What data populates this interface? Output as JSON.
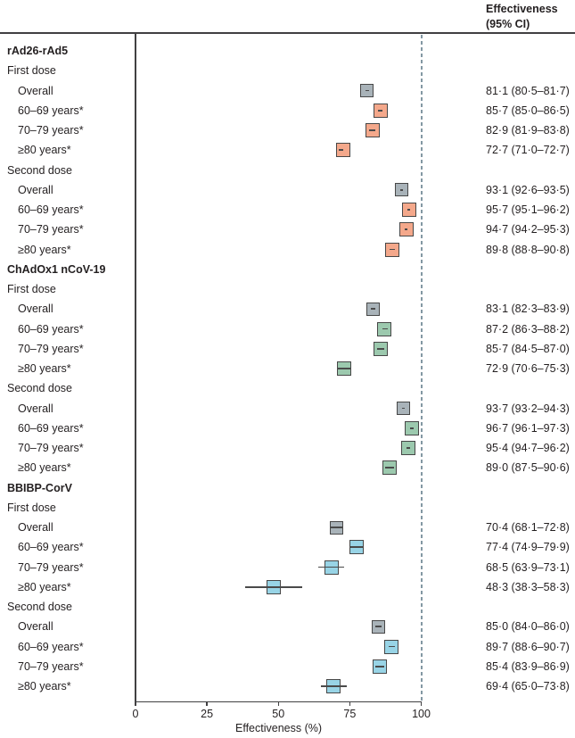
{
  "header": {
    "line1": "Effectiveness",
    "line2": "(95% CI)"
  },
  "chart_data": {
    "type": "forest",
    "xlabel": "Effectiveness (%)",
    "x_ticks": [
      0,
      25,
      50,
      75,
      100
    ],
    "x_range": [
      0,
      100
    ],
    "reference_line_x": 100,
    "legend_position": "none",
    "grid": false,
    "colors": {
      "overall": "#a9b3b9",
      "salmon": "#f4a88b",
      "green": "#9cc9ae",
      "blue": "#98d4e6",
      "box_border": "#474747",
      "whisker": "#4a4a4a",
      "reference_dash": "#8398a3",
      "axis": "#414042"
    },
    "rows": [
      {
        "kind": "group",
        "label": "rAd26-rAd5"
      },
      {
        "kind": "dose",
        "label": "First dose"
      },
      {
        "kind": "item",
        "label": "Overall",
        "est": 81.1,
        "lo": 80.5,
        "hi": 81.7,
        "value": "81·1 (80·5–81·7)",
        "color": "overall"
      },
      {
        "kind": "item",
        "label": "60–69 years*",
        "est": 85.7,
        "lo": 85.0,
        "hi": 86.5,
        "value": "85·7 (85·0–86·5)",
        "color": "salmon"
      },
      {
        "kind": "item",
        "label": "70–79 years*",
        "est": 82.9,
        "lo": 81.9,
        "hi": 83.8,
        "value": "82·9 (81·9–83·8)",
        "color": "salmon"
      },
      {
        "kind": "item",
        "label": "≥80 years*",
        "est": 72.7,
        "lo": 71.0,
        "hi": 72.7,
        "value": "72·7 (71·0–72·7)",
        "color": "salmon"
      },
      {
        "kind": "dose",
        "label": "Second dose"
      },
      {
        "kind": "item",
        "label": "Overall",
        "est": 93.1,
        "lo": 92.6,
        "hi": 93.5,
        "value": "93·1 (92·6–93·5)",
        "color": "overall"
      },
      {
        "kind": "item",
        "label": "60–69 years*",
        "est": 95.7,
        "lo": 95.1,
        "hi": 96.2,
        "value": "95·7 (95·1–96·2)",
        "color": "salmon"
      },
      {
        "kind": "item",
        "label": "70–79 years*",
        "est": 94.7,
        "lo": 94.2,
        "hi": 95.3,
        "value": "94·7 (94·2–95·3)",
        "color": "salmon"
      },
      {
        "kind": "item",
        "label": "≥80 years*",
        "est": 89.8,
        "lo": 88.8,
        "hi": 90.8,
        "value": "89·8 (88·8–90·8)",
        "color": "salmon"
      },
      {
        "kind": "group",
        "label": "ChAdOx1 nCoV-19"
      },
      {
        "kind": "dose",
        "label": "First dose"
      },
      {
        "kind": "item",
        "label": "Overall",
        "est": 83.1,
        "lo": 82.3,
        "hi": 83.9,
        "value": "83·1 (82·3–83·9)",
        "color": "overall"
      },
      {
        "kind": "item",
        "label": "60–69 years*",
        "est": 87.2,
        "lo": 86.3,
        "hi": 88.2,
        "value": "87·2 (86·3–88·2)",
        "color": "green"
      },
      {
        "kind": "item",
        "label": "70–79 years*",
        "est": 85.7,
        "lo": 84.5,
        "hi": 87.0,
        "value": "85·7 (84·5–87·0)",
        "color": "green"
      },
      {
        "kind": "item",
        "label": "≥80 years*",
        "est": 72.9,
        "lo": 70.6,
        "hi": 75.3,
        "value": "72·9 (70·6–75·3)",
        "color": "green"
      },
      {
        "kind": "dose",
        "label": "Second dose"
      },
      {
        "kind": "item",
        "label": "Overall",
        "est": 93.7,
        "lo": 93.2,
        "hi": 94.3,
        "value": "93·7 (93·2–94·3)",
        "color": "overall"
      },
      {
        "kind": "item",
        "label": "60–69 years*",
        "est": 96.7,
        "lo": 96.1,
        "hi": 97.3,
        "value": "96·7 (96·1–97·3)",
        "color": "green"
      },
      {
        "kind": "item",
        "label": "70–79 years*",
        "est": 95.4,
        "lo": 94.7,
        "hi": 96.2,
        "value": "95·4 (94·7–96·2)",
        "color": "green"
      },
      {
        "kind": "item",
        "label": "≥80 years*",
        "est": 89.0,
        "lo": 87.5,
        "hi": 90.6,
        "value": "89·0 (87·5–90·6)",
        "color": "green"
      },
      {
        "kind": "group",
        "label": "BBIBP-CorV"
      },
      {
        "kind": "dose",
        "label": "First dose"
      },
      {
        "kind": "item",
        "label": "Overall",
        "est": 70.4,
        "lo": 68.1,
        "hi": 72.8,
        "value": "70·4 (68·1–72·8)",
        "color": "overall"
      },
      {
        "kind": "item",
        "label": "60–69 years*",
        "est": 77.4,
        "lo": 74.9,
        "hi": 79.9,
        "value": "77·4 (74·9–79·9)",
        "color": "blue"
      },
      {
        "kind": "item",
        "label": "70–79 years*",
        "est": 68.5,
        "lo": 63.9,
        "hi": 73.1,
        "value": "68·5 (63·9–73·1)",
        "color": "blue"
      },
      {
        "kind": "item",
        "label": "≥80 years*",
        "est": 48.3,
        "lo": 38.3,
        "hi": 58.3,
        "value": "48·3 (38·3–58·3)",
        "color": "blue"
      },
      {
        "kind": "dose",
        "label": "Second dose"
      },
      {
        "kind": "item",
        "label": "Overall",
        "est": 85.0,
        "lo": 84.0,
        "hi": 86.0,
        "value": "85·0 (84·0–86·0)",
        "color": "overall"
      },
      {
        "kind": "item",
        "label": "60–69 years*",
        "est": 89.7,
        "lo": 88.6,
        "hi": 90.7,
        "value": "89·7 (88·6–90·7)",
        "color": "blue"
      },
      {
        "kind": "item",
        "label": "70–79 years*",
        "est": 85.4,
        "lo": 83.9,
        "hi": 86.9,
        "value": "85·4 (83·9–86·9)",
        "color": "blue"
      },
      {
        "kind": "item",
        "label": "≥80 years*",
        "est": 69.4,
        "lo": 65.0,
        "hi": 73.8,
        "value": "69·4 (65·0–73·8)",
        "color": "blue"
      }
    ]
  }
}
